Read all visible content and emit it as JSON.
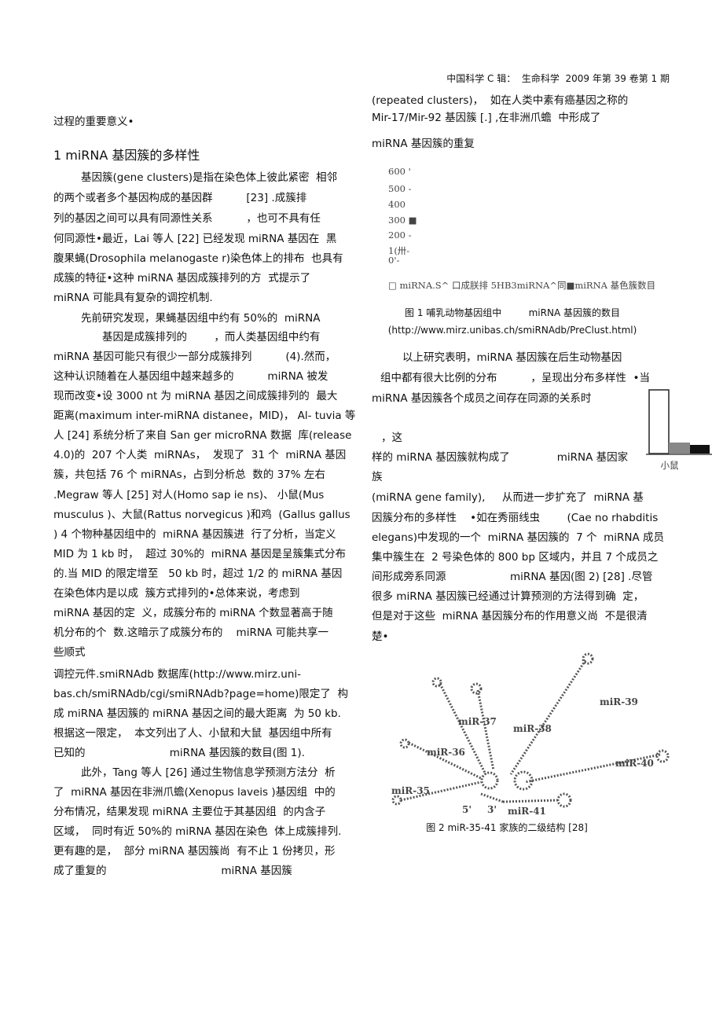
{
  "header": {
    "journal": "中国科学 C 辑：  生命科学  2009 年第 39 卷第 1 期"
  },
  "left_column": {
    "lines": [
      "过程的重要意义•",
      "1 miRNA 基因簇的多样性",
      "基因簇(gene clusters)是指在染色体上彼此紧密  相邻",
      "的两个或者多个基因构成的基因群          [23] .成簇排",
      "列的基因之间可以具有同源性关系          ，也可不具有任",
      "何同源性•最近，Lai 等人 [22] 已经发现 miRNA 基因在  黑",
      "腹果蝇(Drosophila melanogaste r)染色体上的排布  也具有",
      "成簇的特征•这种 miRNA 基因成簇排列的方  式提示了",
      "miRNA 可能具有复杂的调控机制.",
      "先前研究发现，果蝇基因组中约有 50%的  miRNA",
      "基因是成簇排列的        ，而人类基因组中约有",
      "miRNA 基因可能只有很少一部分成簇排列          (4).然而，",
      "这种认识随着在人基因组中越来越多的          miRNA 被发",
      "现而改变•设 3000 nt 为 miRNA 基因之间成簇排列的  最大",
      "距离(maximum inter-miRNA distanee，MID)， Al- tuvia 等",
      "人 [24] 系统分析了来自 San ger microRNA 数据  库(release",
      "4.0)的  207 个人类  miRNAs，  发现了  31 个  miRNA 基因",
      "簇，共包括 76 个 miRNAs，占到分析总  数的 37% 左右",
      ".Megraw 等人 [25] 对人(Homo sap ie ns)、 小鼠(Mus",
      "musculus )、大鼠(Rattus norvegicus )和鸡  (Gallus gallus",
      ") 4 个物种基因组中的  miRNA 基因簇进  行了分析，当定义",
      "MID 为 1 kb 时，  超过 30%的  miRNA 基因是呈簇集式分布",
      "的.当 MID 的限定增至   50 kb 时，超过 1/2 的 miRNA 基因",
      "在染色体内是以成  簇方式排列的•总体来说，考虑到",
      "miRNA 基因的定  义，成簇分布的 miRNA 个数显著高于随",
      "机分布的个  数.这暗示了成簇分布的    miRNA 可能共享一",
      "些顺式",
      "调控元件.smiRNAdb 数据库(http://www.mirz.uni-",
      "bas.ch/smiRNAdb/cgi/smiRNAdb?page=home)限定了  构",
      "成 miRNA 基因簇的 miRNA 基因之间的最大距离  为 50 kb.",
      "根据这一限定，  本文列出了人、小鼠和大鼠  基因组中所有",
      "已知的                         miRNA 基因簇的数目(图 1).",
      "此外，Tang 等人 [26] 通过生物信息学预测方法分  析",
      "了  miRNA 基因在非洲爪蟾(Xenopus laveis )基因组  中的",
      "分布情况，结果发现 miRNA 主要位于其基因组  的内含子",
      "区域，  同时有近 50%的 miRNA 基因在染色  体上成簇排列.",
      "更有趣的是，  部分 miRNA 基因簇尚  有不止 1 份拷贝，形",
      "成了重复的                                  miRNA 基因簇"
    ]
  },
  "right_column": {
    "lines": [
      "(repeated clusters)，  如在人类中素有癌基因之称的",
      "Mir-17/Mir-92 基因簇 [.] ,在非洲爪蟾  中形成了",
      "miRNA 基因簇的重复",
      "以上研究表明，miRNA 基因簇在后生动物基因",
      "组中都有很大比例的分布          ，呈现出分布多样性  •当",
      "miRNA 基因簇各个成员之间存在同源的关系时",
      "，这",
      "样的 miRNA 基因簇就构成了              miRNA 基因家",
      "族",
      "(miRNA gene family),     从而进一步扩充了  miRNA 基",
      "因簇分布的多样性    •如在秀丽线虫        (Cae no rhabditis",
      "elegans)中发现的一个  miRNA 基因簇的  7 个  miRNA 成员",
      "集中簇生在  2 号染色体的 800 bp 区域内，并且 7 个成员之",
      "间形成旁系同源                   miRNA 基因(图 2) [28] .尽管",
      "很多 miRNA 基因簇已经通过计算预测的方法得到确  定，",
      "但是对于这些  miRNA 基因簇分布的作用意义尚  不是很清",
      "楚•"
    ]
  },
  "figure_1": {
    "axis_labels": [
      "600 '",
      "500 -",
      "400",
      "300 ■",
      "200 -",
      "1(卅-",
      "0'-"
    ],
    "legend": "□ miRNA.S^ 口成朕排 5HB3miRNA^同■miRNA 基色簇数目",
    "caption": "图 1 哺乳动物基因组中         miRNA 基因簇的数目",
    "url": "(http://www.mirz.unibas.ch/smiRNAdb/PreClust.html)"
  },
  "small_chart": {
    "label": "小鼠"
  },
  "figure_2": {
    "labels": [
      "miR-39",
      "miR-37",
      "miR-38",
      "miR-36",
      "miR-40",
      "miR-35",
      "5'",
      "3'",
      "miR-41"
    ],
    "caption": "图 2 miR-35-41 家族的二级结构 [28]"
  }
}
